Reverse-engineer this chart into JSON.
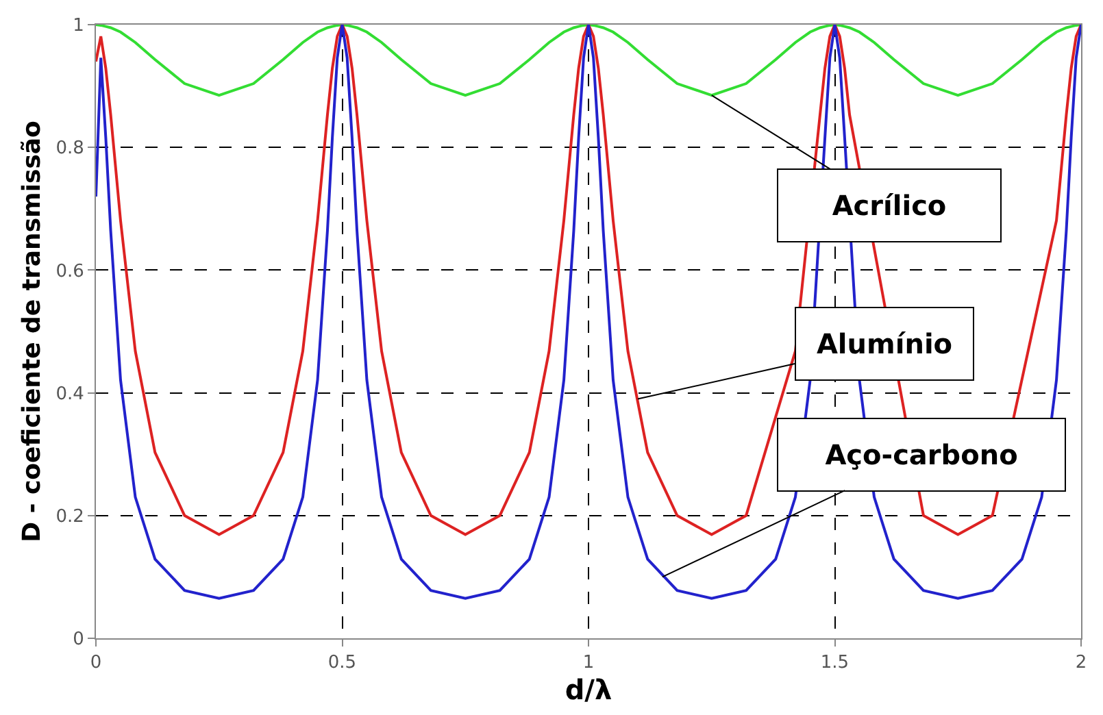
{
  "chart_data": {
    "type": "line",
    "xlabel": "d/λ",
    "ylabel": "D - coeficiente de transmissão",
    "x": [
      0,
      0.01,
      0.02,
      0.03,
      0.05,
      0.08,
      0.12,
      0.18,
      0.25,
      0.32,
      0.38,
      0.42,
      0.45,
      0.47,
      0.48,
      0.49,
      0.5,
      0.51,
      0.52,
      0.53,
      0.55,
      0.58,
      0.62,
      0.68,
      0.75,
      0.82,
      0.88,
      0.92,
      0.95,
      0.97,
      0.98,
      0.99,
      1,
      1.01,
      1.02,
      1.03,
      1.05,
      1.08,
      1.12,
      1.18,
      1.25,
      1.32,
      1.38,
      1.42,
      1.45,
      1.47,
      1.48,
      1.49,
      1.5,
      1.51,
      1.52,
      1.53,
      1.55,
      1.58,
      1.62,
      1.68,
      1.75,
      1.82,
      1.88,
      1.92,
      1.95,
      1.97,
      1.98,
      1.99,
      2
    ],
    "series": [
      {
        "color": "#33dd33",
        "values": [
          1,
          0.999,
          0.997,
          0.995,
          0.988,
          0.971,
          0.943,
          0.904,
          0.885,
          0.904,
          0.943,
          0.971,
          0.988,
          0.995,
          0.997,
          0.999,
          1,
          0.999,
          0.997,
          0.995,
          0.988,
          0.971,
          0.943,
          0.904,
          0.885,
          0.904,
          0.943,
          0.971,
          0.988,
          0.995,
          0.997,
          0.999,
          1,
          0.999,
          0.997,
          0.995,
          0.988,
          0.971,
          0.943,
          0.904,
          0.885,
          0.904,
          0.943,
          0.971,
          0.988,
          0.995,
          0.997,
          0.999,
          1,
          0.999,
          0.997,
          0.995,
          0.988,
          0.971,
          0.943,
          0.904,
          0.885,
          0.904,
          0.943,
          0.971,
          0.988,
          0.995,
          0.997,
          0.999,
          1
        ]
      },
      {
        "color": "#dd2222",
        "values": [
          0.94,
          0.981,
          0.929,
          0.853,
          0.681,
          0.468,
          0.303,
          0.2,
          0.169,
          0.2,
          0.303,
          0.468,
          0.681,
          0.853,
          0.929,
          0.981,
          1,
          0.981,
          0.929,
          0.853,
          0.681,
          0.468,
          0.303,
          0.2,
          0.169,
          0.2,
          0.303,
          0.468,
          0.681,
          0.853,
          0.929,
          0.981,
          1,
          0.981,
          0.929,
          0.853,
          0.681,
          0.468,
          0.303,
          0.2,
          0.169,
          0.2,
          null,
          0.468,
          null,
          0.853,
          0.929,
          0.981,
          1,
          0.981,
          0.929,
          0.853,
          null,
          null,
          null,
          0.2,
          0.169,
          0.2,
          null,
          null,
          0.681,
          0.853,
          0.929,
          0.981,
          1
        ]
      },
      {
        "color": "#2222cc",
        "values": [
          0.72,
          0.946,
          0.816,
          0.664,
          0.421,
          0.23,
          0.129,
          0.078,
          0.065,
          0.078,
          0.129,
          0.23,
          0.421,
          0.664,
          0.816,
          0.946,
          1,
          0.946,
          0.816,
          0.664,
          0.421,
          0.23,
          0.129,
          0.078,
          0.065,
          0.078,
          0.129,
          0.23,
          0.421,
          0.664,
          0.816,
          0.946,
          1,
          0.946,
          0.816,
          0.664,
          0.421,
          0.23,
          0.129,
          0.078,
          0.065,
          0.078,
          0.129,
          0.23,
          0.421,
          null,
          0.816,
          0.946,
          1,
          0.946,
          0.816,
          null,
          0.421,
          0.23,
          0.129,
          0.078,
          0.065,
          0.078,
          0.129,
          0.23,
          0.421,
          0.664,
          0.816,
          0.946,
          1
        ]
      }
    ],
    "xlim": [
      0,
      2
    ],
    "xticks": [
      0,
      0.5,
      1,
      1.5,
      2
    ],
    "ylim": [
      0,
      1
    ],
    "yticks": [
      0,
      0.2,
      0.4,
      0.6,
      0.8,
      1
    ],
    "grid": true,
    "line_style": "solid",
    "annotations": [
      {
        "text": "Acrílico",
        "x": 1.25,
        "y": 0.885
      },
      {
        "text": "Alumínio",
        "x": 1.1,
        "y": 0.39
      },
      {
        "text": "Aço-carbono",
        "x": 1.15,
        "y": 0.1
      }
    ]
  }
}
